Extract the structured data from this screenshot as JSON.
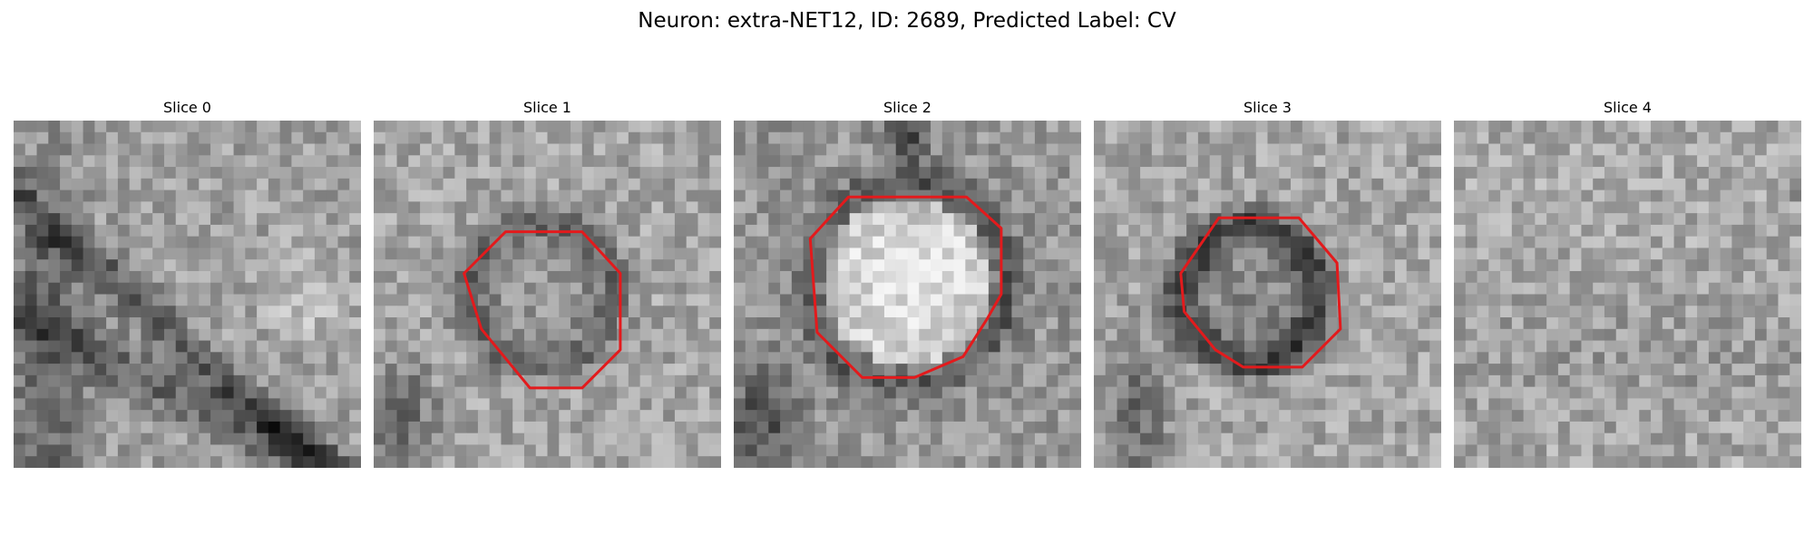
{
  "title": "Neuron: extra-NET12, ID: 2689, Predicted Label: CV",
  "grid_size": 30,
  "outline_color": "#e31a1c",
  "panels": [
    {
      "title": "Slice 0",
      "has_outline": false,
      "seed": 11
    },
    {
      "title": "Slice 1",
      "has_outline": true,
      "seed": 23
    },
    {
      "title": "Slice 2",
      "has_outline": true,
      "seed": 37
    },
    {
      "title": "Slice 3",
      "has_outline": true,
      "seed": 51
    },
    {
      "title": "Slice 4",
      "has_outline": false,
      "seed": 67
    }
  ]
}
